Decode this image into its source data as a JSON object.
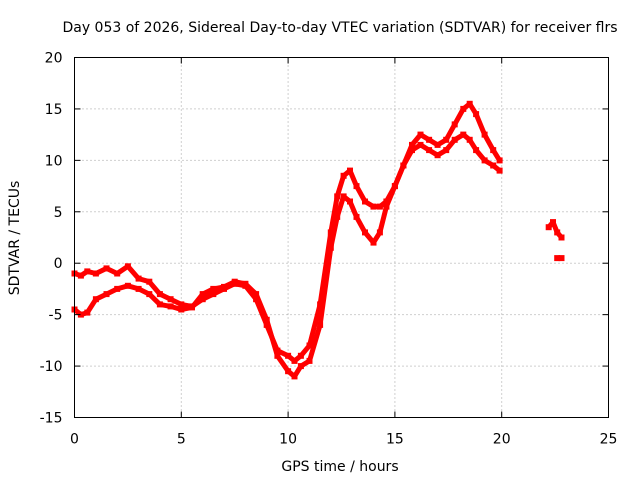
{
  "chart_data": {
    "type": "scatter",
    "title": "Day 053 of 2026, Sidereal Day-to-day VTEC variation (SDTVAR) for receiver flrs",
    "xlabel": "GPS time / hours",
    "ylabel": "SDTVAR / TECUs",
    "xlim": [
      0,
      25
    ],
    "ylim": [
      -15,
      20
    ],
    "xticks": [
      "0",
      "5",
      "10",
      "15",
      "20",
      "25"
    ],
    "yticks": [
      "-15",
      "-10",
      "-5",
      "0",
      "5",
      "10",
      "15",
      "20"
    ],
    "grid": true,
    "legend": "none",
    "color": "#ff0000",
    "series": [
      {
        "x": [
          0.0,
          0.3,
          0.6,
          1.0,
          1.5,
          2.0,
          2.5,
          3.0,
          3.5,
          4.0,
          4.5,
          5.0,
          5.5,
          6.0,
          6.5,
          7.0,
          7.5,
          8.0,
          8.5,
          9.0,
          9.5,
          10.0,
          10.3,
          10.6,
          11.0,
          11.5,
          12.0,
          12.3,
          12.6,
          12.9,
          13.2,
          13.6,
          14.0,
          14.3,
          14.6,
          15.0,
          15.4,
          15.8,
          16.2,
          16.6,
          17.0,
          17.4,
          17.8,
          18.2,
          18.5,
          18.8,
          19.2,
          19.6,
          19.9
        ],
        "y": [
          -1.0,
          -1.2,
          -0.8,
          -1.0,
          -0.5,
          -1.0,
          -0.3,
          -1.5,
          -1.8,
          -3.0,
          -3.5,
          -4.0,
          -4.2,
          -3.5,
          -3.0,
          -2.5,
          -2.0,
          -2.2,
          -3.5,
          -6.0,
          -8.5,
          -9.0,
          -9.5,
          -9.0,
          -8.0,
          -4.0,
          3.0,
          6.5,
          8.5,
          9.0,
          7.5,
          6.0,
          5.5,
          5.5,
          6.0,
          7.5,
          9.5,
          11.5,
          12.5,
          12.0,
          11.5,
          12.0,
          13.5,
          15.0,
          15.5,
          14.5,
          12.5,
          11.0,
          10.0
        ]
      },
      {
        "x": [
          0.0,
          0.3,
          0.6,
          1.0,
          1.5,
          2.0,
          2.5,
          3.0,
          3.5,
          4.0,
          4.5,
          5.0,
          5.5,
          6.0,
          6.5,
          7.0,
          7.5,
          8.0,
          8.5,
          9.0,
          9.5,
          10.0,
          10.3,
          10.6,
          11.0,
          11.5,
          12.0,
          12.3,
          12.6,
          12.9,
          13.2,
          13.6,
          14.0,
          14.3,
          14.6,
          15.0,
          15.4,
          15.8,
          16.2,
          16.6,
          17.0,
          17.4,
          17.8,
          18.2,
          18.5,
          18.8,
          19.2,
          19.6,
          19.9
        ],
        "y": [
          -4.5,
          -5.0,
          -4.8,
          -3.5,
          -3.0,
          -2.5,
          -2.2,
          -2.5,
          -3.0,
          -4.0,
          -4.2,
          -4.5,
          -4.3,
          -3.0,
          -2.5,
          -2.3,
          -1.8,
          -2.0,
          -3.0,
          -5.5,
          -9.0,
          -10.5,
          -11.0,
          -10.0,
          -9.5,
          -6.0,
          1.5,
          4.5,
          6.5,
          6.0,
          4.5,
          3.0,
          2.0,
          3.0,
          5.5,
          7.5,
          9.5,
          11.0,
          11.5,
          11.0,
          10.5,
          11.0,
          12.0,
          12.5,
          12.0,
          11.0,
          10.0,
          9.5,
          9.0
        ]
      },
      {
        "x": [
          22.2,
          22.4,
          22.6,
          22.8
        ],
        "y": [
          3.5,
          4.0,
          3.0,
          2.5
        ]
      },
      {
        "x": [
          22.6,
          22.8
        ],
        "y": [
          0.5,
          0.5
        ]
      }
    ]
  }
}
